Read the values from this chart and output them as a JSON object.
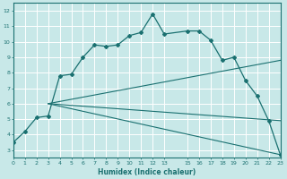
{
  "xlabel": "Humidex (Indice chaleur)",
  "bg_color": "#c8e8e8",
  "grid_color": "#ffffff",
  "line_color": "#1a7070",
  "series": [
    {
      "x": [
        0,
        1,
        2,
        3,
        4,
        5,
        6,
        7,
        8,
        9,
        10,
        11,
        12,
        13,
        15,
        16,
        17,
        18,
        19,
        20,
        21,
        22,
        23
      ],
      "y": [
        3.5,
        4.2,
        5.1,
        5.2,
        7.8,
        7.9,
        9.0,
        9.8,
        9.7,
        9.8,
        10.4,
        10.6,
        11.8,
        10.5,
        10.7,
        10.7,
        10.1,
        8.8,
        9.0,
        7.5,
        6.5,
        4.9,
        2.7
      ]
    },
    {
      "x": [
        3,
        23
      ],
      "y": [
        6.0,
        2.7
      ]
    },
    {
      "x": [
        3,
        23
      ],
      "y": [
        6.0,
        4.9
      ]
    },
    {
      "x": [
        3,
        23
      ],
      "y": [
        6.0,
        8.8
      ]
    }
  ],
  "xlim": [
    0,
    23
  ],
  "ylim": [
    2.5,
    12.5
  ],
  "xticks": [
    0,
    1,
    2,
    3,
    4,
    5,
    6,
    7,
    8,
    9,
    10,
    11,
    12,
    13,
    15,
    16,
    17,
    18,
    19,
    20,
    21,
    22,
    23
  ],
  "yticks": [
    3,
    4,
    5,
    6,
    7,
    8,
    9,
    10,
    11,
    12
  ],
  "figsize": [
    3.2,
    2.0
  ],
  "dpi": 100
}
